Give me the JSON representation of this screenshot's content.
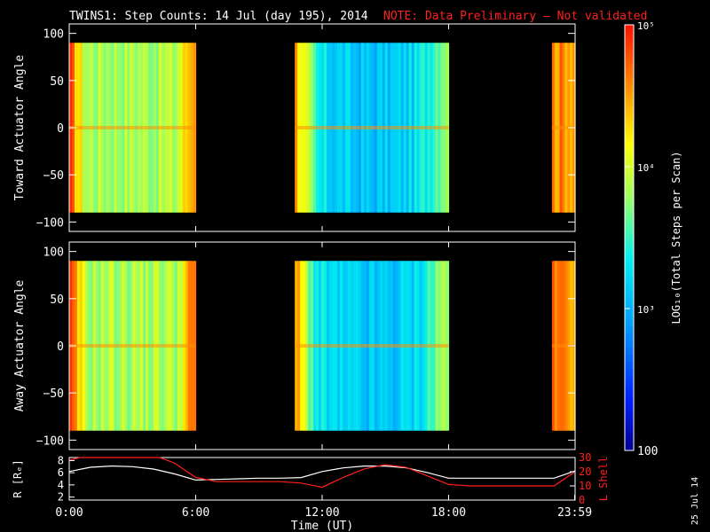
{
  "header": {
    "title": "TWINS1: Step Counts: 14 Jul (day 195), 2014",
    "note": "NOTE: Data Preliminary — Not validated"
  },
  "side_date": "25 Jul 14",
  "colors": {
    "background": "#000000",
    "axes": "#ffffff",
    "note": "#ff2020",
    "lshell": "#ff2020",
    "r": "#ffffff"
  },
  "colorbar": {
    "scale": "log",
    "range": [
      100,
      100000
    ],
    "tick_labels": [
      "10⁵",
      "10⁴",
      "10³",
      "100"
    ],
    "tick_values": [
      100000,
      10000,
      1000,
      100
    ],
    "label": "LOG₁₀(Total Steps per Scan)"
  },
  "chart_data": [
    {
      "type": "heatmap",
      "ylabel": "Toward Actuator Angle",
      "ylim": [
        -110,
        110
      ],
      "yticks": [
        "100",
        "50",
        "0",
        "−50",
        "−100"
      ],
      "ytick_values": [
        100,
        50,
        0,
        -50,
        -100
      ],
      "data_y_range": [
        -90,
        90
      ],
      "x_range_hours": [
        0,
        24
      ],
      "data_intervals_hours": [
        [
          0,
          6.0
        ],
        [
          10.7,
          18.0
        ],
        [
          22.9,
          24.0
        ]
      ]
    },
    {
      "type": "heatmap",
      "ylabel": "Away Actuator Angle",
      "ylim": [
        -110,
        110
      ],
      "yticks": [
        "100",
        "50",
        "0",
        "−50",
        "−100"
      ],
      "ytick_values": [
        100,
        50,
        0,
        -50,
        -100
      ],
      "data_y_range": [
        -90,
        90
      ],
      "x_range_hours": [
        0,
        24
      ],
      "data_intervals_hours": [
        [
          0,
          6.0
        ],
        [
          10.7,
          18.0
        ],
        [
          22.9,
          24.0
        ]
      ]
    },
    {
      "type": "line",
      "ylabel": "R [Rₑ]",
      "ylabel_right": "L Shell",
      "ylim": [
        1.5,
        8.5
      ],
      "yticks": [
        "8",
        "6",
        "4",
        "2"
      ],
      "ytick_values": [
        8,
        6,
        4,
        2
      ],
      "ylim_right": [
        0,
        30
      ],
      "yticks_right": [
        "30",
        "20",
        "10",
        "0"
      ],
      "ytick_values_right": [
        30,
        20,
        10,
        0
      ],
      "xlabel": "Time (UT)",
      "xticks": [
        "0:00",
        "6:00",
        "12:00",
        "18:00",
        "23:59"
      ],
      "xtick_values": [
        0,
        6,
        12,
        18,
        23.98
      ],
      "series": [
        {
          "axis": "left",
          "x": [
            0,
            1,
            2,
            3,
            4,
            5,
            6,
            7,
            8,
            9,
            10,
            11,
            12,
            13,
            14,
            15,
            16,
            17,
            18,
            19,
            20,
            21,
            22,
            23,
            24
          ],
          "values": [
            6.2,
            6.9,
            7.1,
            7.0,
            6.6,
            5.8,
            4.8,
            4.9,
            5.0,
            5.1,
            5.1,
            5.2,
            6.2,
            6.8,
            7.1,
            7.1,
            6.8,
            6.0,
            5.1,
            5.1,
            5.1,
            5.1,
            5.1,
            5.1,
            6.3
          ]
        },
        {
          "axis": "right",
          "x": [
            0,
            0.5,
            1,
            4.3,
            5.0,
            6.0,
            7,
            8,
            9,
            10,
            11,
            12,
            13,
            14,
            15,
            16,
            17,
            18,
            19,
            20,
            21,
            22,
            23,
            24
          ],
          "values": [
            28,
            32,
            36,
            36,
            26,
            16,
            13,
            13,
            13,
            13,
            12,
            9,
            16,
            22,
            25,
            23,
            17,
            11,
            10,
            10,
            10,
            10,
            10,
            20
          ]
        }
      ]
    }
  ]
}
